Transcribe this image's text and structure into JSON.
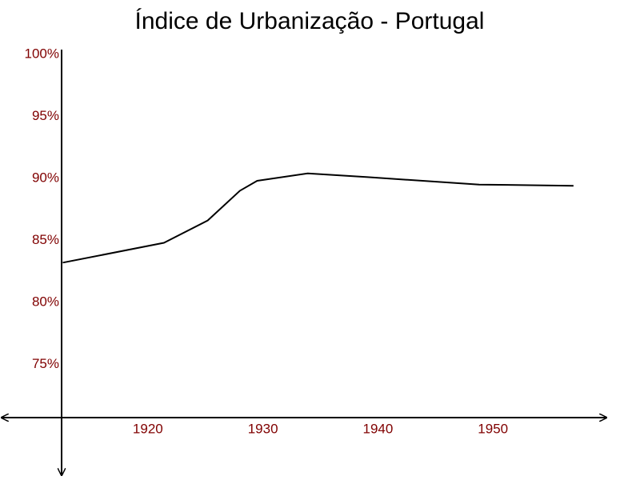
{
  "chart_data": {
    "type": "line",
    "title": "Índice de Urbanização - Portugal",
    "x": [
      1912.6,
      1921.4,
      1925.2,
      1928,
      1929.5,
      1933.9,
      1939.1,
      1948.8,
      1957
    ],
    "values": [
      83.2,
      84.8,
      86.6,
      89.0,
      89.8,
      90.4,
      90.1,
      89.5,
      89.4
    ],
    "color": "#000000",
    "xlim": [
      1912.5,
      1960
    ],
    "xticks": [
      1920,
      1930,
      1940,
      1950
    ],
    "ylim": [
      70.7,
      100
    ],
    "yticks": [
      {
        "value": 75,
        "label": "75%"
      },
      {
        "value": 80,
        "label": "80%"
      },
      {
        "value": 85,
        "label": "85%"
      },
      {
        "value": 90,
        "label": "90%"
      },
      {
        "value": 95,
        "label": "95%"
      },
      {
        "value": 100,
        "label": "100%"
      }
    ],
    "grid": false
  }
}
